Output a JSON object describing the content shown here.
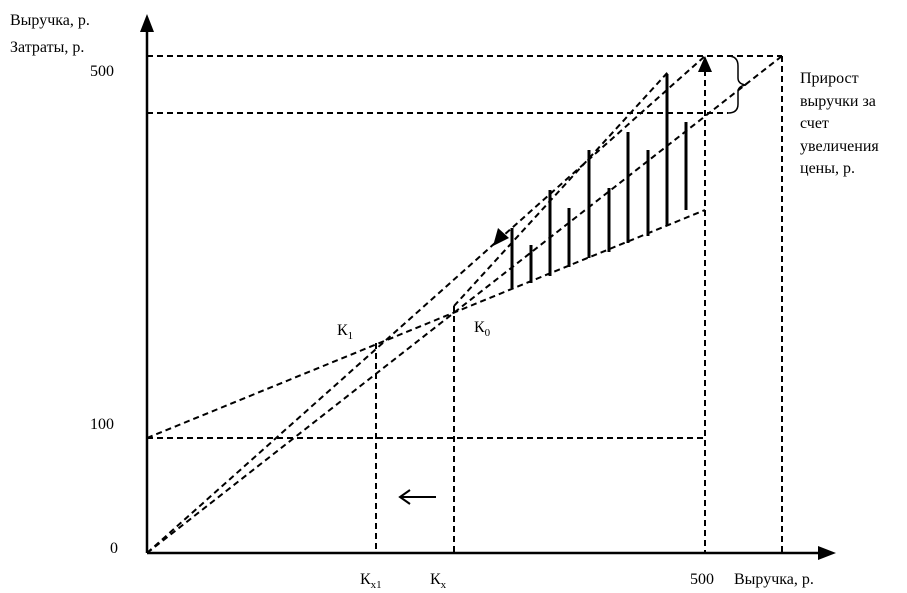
{
  "axes": {
    "y_label_line1": "Выручка, р.",
    "y_label_line2": "Затраты, р.",
    "x_label": "Выручка, р."
  },
  "ticks": {
    "y_500": "500",
    "y_100": "100",
    "origin": "0",
    "x_500": "500"
  },
  "points": {
    "k1": {
      "main": "К",
      "sub": "1"
    },
    "k0": {
      "main": "К",
      "sub": "0"
    },
    "kx1": {
      "main": "К",
      "sub": "x1"
    },
    "kx": {
      "main": "К",
      "sub": "x"
    }
  },
  "annotation": {
    "line1": "Прирост",
    "line2": "выручки за",
    "line3": "счет",
    "line4": "увеличения",
    "line5": "цены, р."
  }
}
